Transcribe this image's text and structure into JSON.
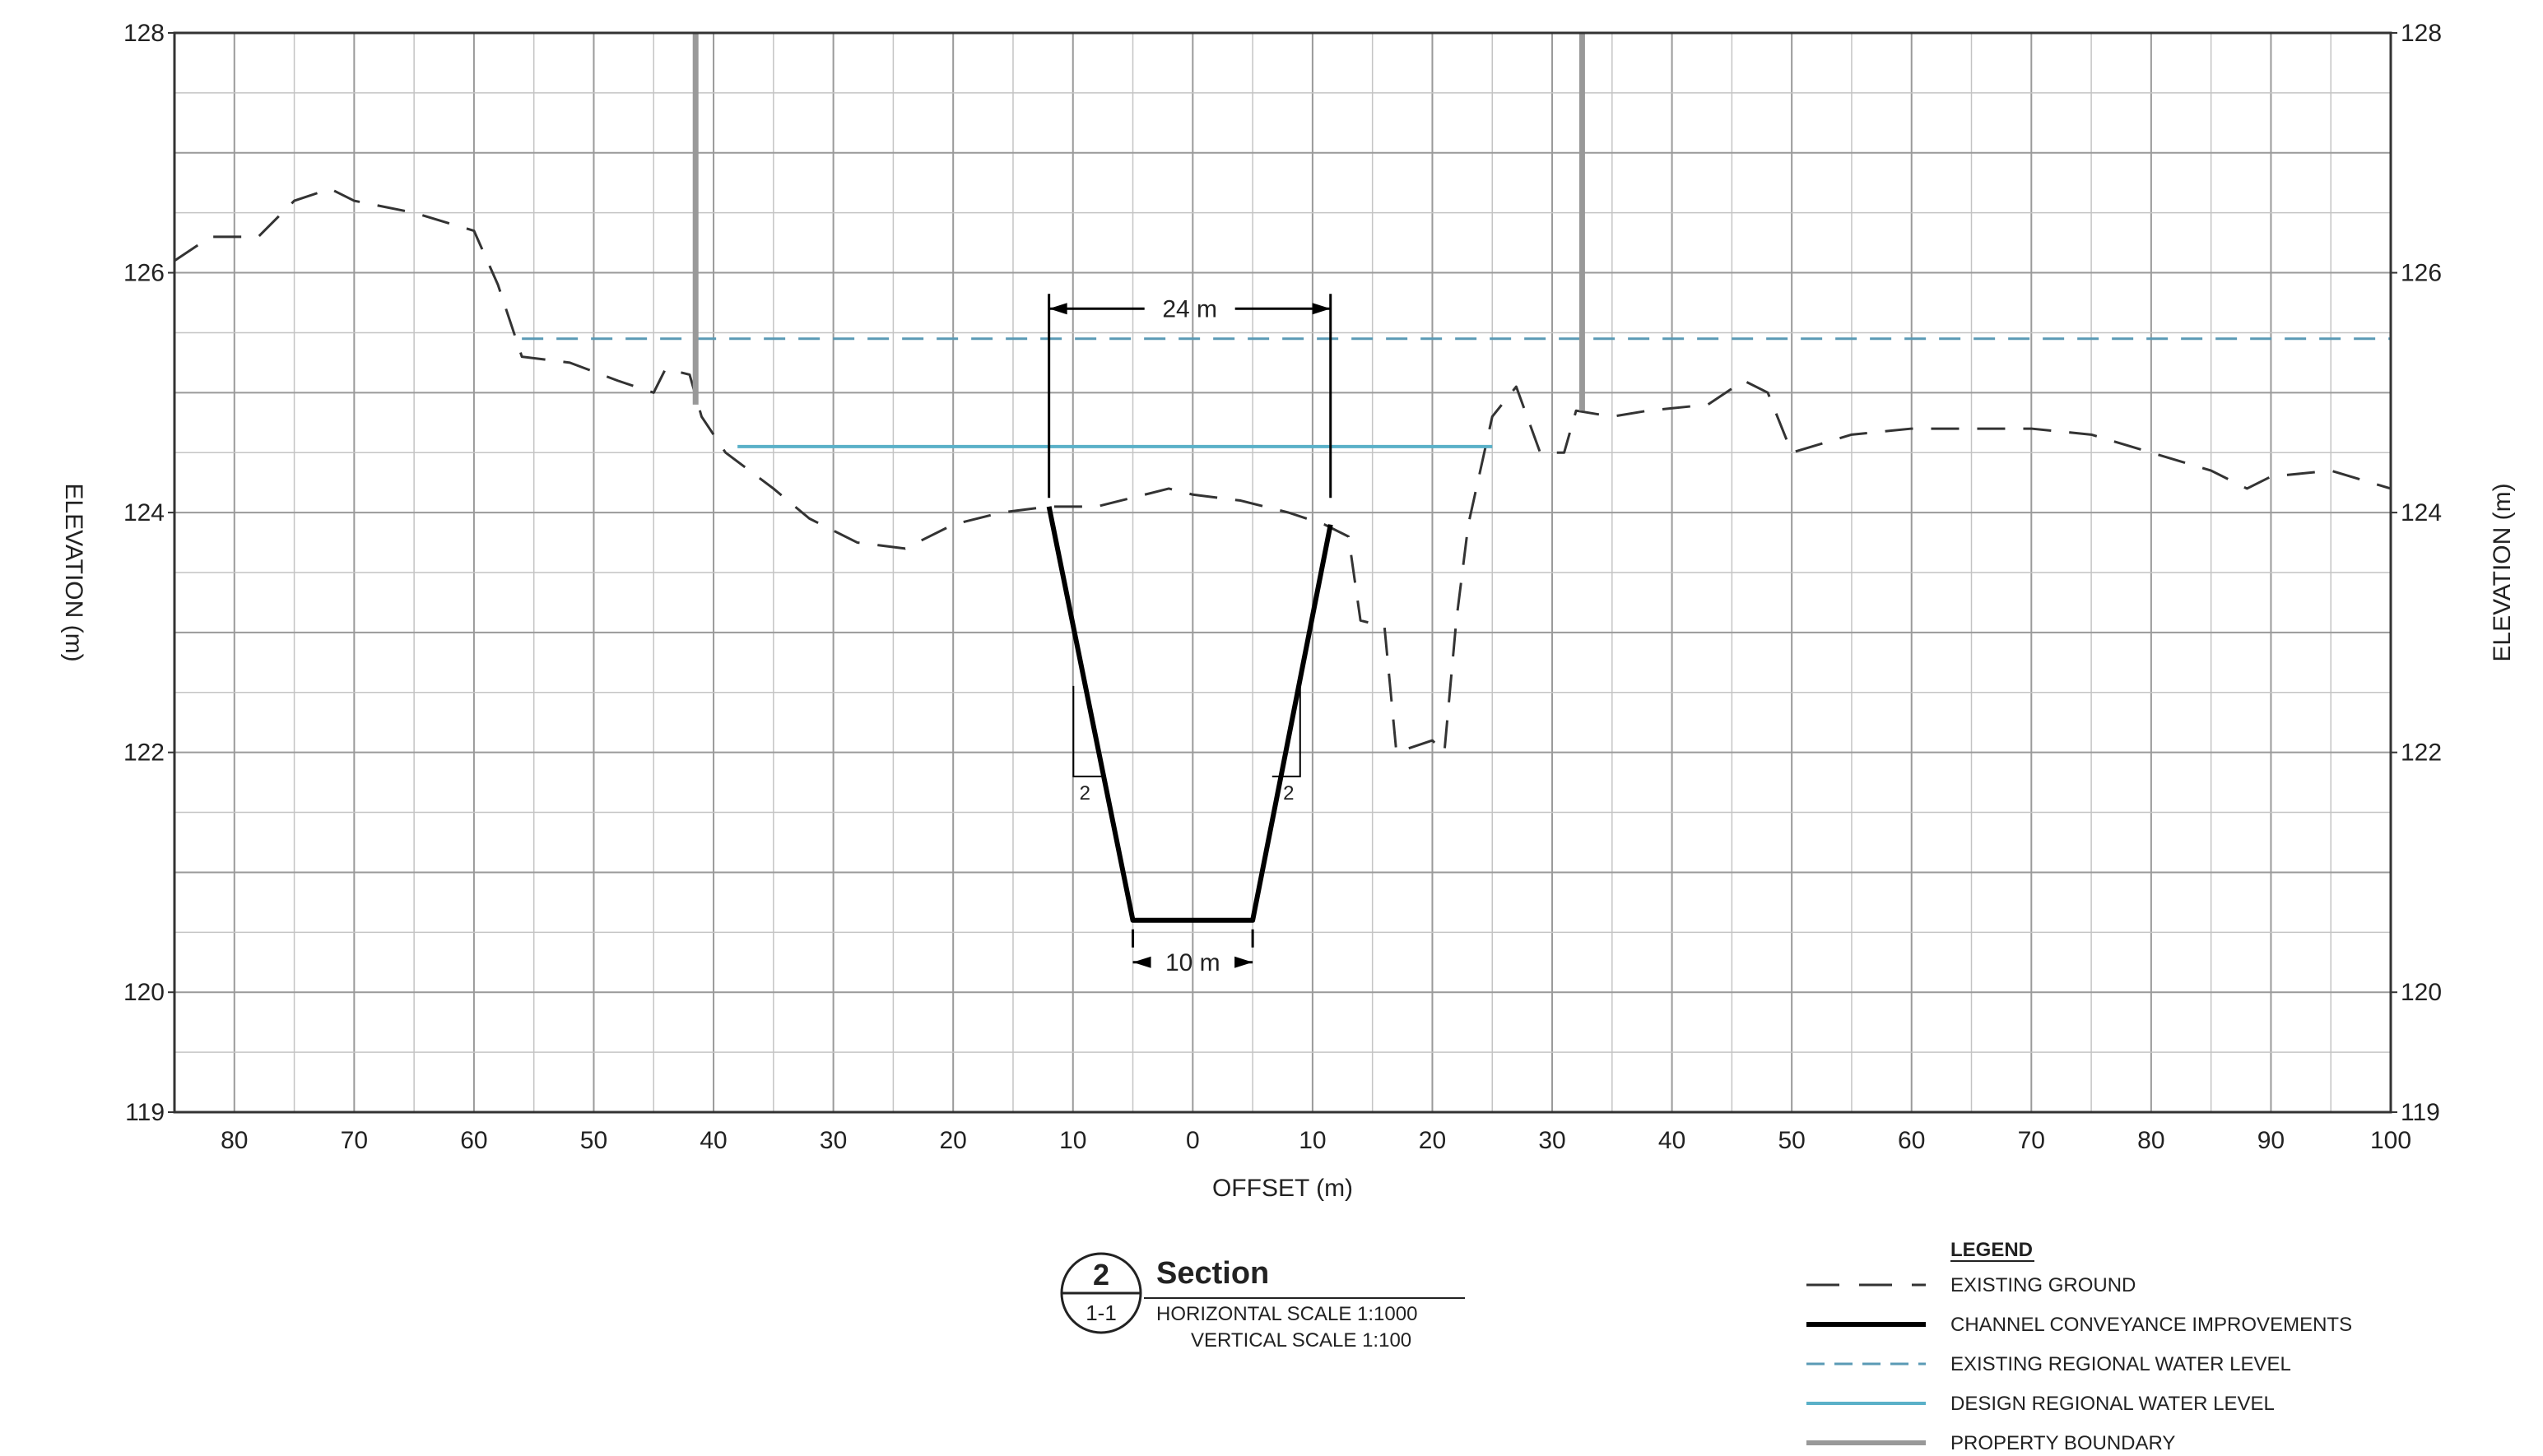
{
  "chart_data": {
    "type": "line",
    "xlabel": "OFFSET (m)",
    "ylabel_left": "ELEVATION (m)",
    "ylabel_right": "ELEVATION (m)",
    "ylim": [
      119,
      128
    ],
    "xlim": [
      -85,
      100
    ],
    "x_tick_positions": [
      -80,
      -70,
      -60,
      -50,
      -40,
      -30,
      -20,
      -10,
      0,
      10,
      20,
      30,
      40,
      50,
      60,
      70,
      80,
      90,
      100
    ],
    "x_tick_labels": [
      "80",
      "70",
      "60",
      "50",
      "40",
      "30",
      "20",
      "10",
      "0",
      "10",
      "20",
      "30",
      "40",
      "50",
      "60",
      "70",
      "80",
      "90",
      "100"
    ],
    "y_ticks": [
      119,
      120,
      122,
      124,
      126,
      128
    ],
    "y_tick_labels": [
      "119",
      "120",
      "122",
      "124",
      "126",
      "128"
    ],
    "grid": true,
    "series": [
      {
        "name": "EXISTING GROUND",
        "style": "long-dash",
        "color": "#333333",
        "points": [
          [
            -85,
            126.1
          ],
          [
            -82,
            126.3
          ],
          [
            -78,
            126.3
          ],
          [
            -75,
            126.6
          ],
          [
            -72,
            126.7
          ],
          [
            -70,
            126.6
          ],
          [
            -65,
            126.5
          ],
          [
            -60,
            126.35
          ],
          [
            -58,
            125.9
          ],
          [
            -56,
            125.3
          ],
          [
            -52,
            125.25
          ],
          [
            -48,
            125.1
          ],
          [
            -45,
            125.0
          ],
          [
            -44,
            125.2
          ],
          [
            -42,
            125.15
          ],
          [
            -41,
            124.8
          ],
          [
            -39,
            124.5
          ],
          [
            -35,
            124.2
          ],
          [
            -32,
            123.95
          ],
          [
            -28,
            123.75
          ],
          [
            -24,
            123.7
          ],
          [
            -20,
            123.9
          ],
          [
            -16,
            124.0
          ],
          [
            -12,
            124.05
          ],
          [
            -8,
            124.05
          ],
          [
            -4,
            124.15
          ],
          [
            -2,
            124.2
          ],
          [
            0,
            124.15
          ],
          [
            4,
            124.1
          ],
          [
            8,
            124.0
          ],
          [
            11,
            123.9
          ],
          [
            13,
            123.8
          ],
          [
            14,
            123.1
          ],
          [
            16,
            123.05
          ],
          [
            17,
            122.0
          ],
          [
            20,
            122.1
          ],
          [
            21,
            122.0
          ],
          [
            22,
            123.1
          ],
          [
            23,
            123.9
          ],
          [
            25,
            124.8
          ],
          [
            27,
            125.05
          ],
          [
            29,
            124.5
          ],
          [
            31,
            124.5
          ],
          [
            32,
            124.85
          ],
          [
            35,
            124.8
          ],
          [
            38,
            124.85
          ],
          [
            43,
            124.9
          ],
          [
            46,
            125.1
          ],
          [
            48,
            125.0
          ],
          [
            50,
            124.5
          ],
          [
            55,
            124.65
          ],
          [
            60,
            124.7
          ],
          [
            65,
            124.7
          ],
          [
            70,
            124.7
          ],
          [
            75,
            124.65
          ],
          [
            80,
            124.5
          ],
          [
            85,
            124.35
          ],
          [
            88,
            124.2
          ],
          [
            90,
            124.3
          ],
          [
            95,
            124.35
          ],
          [
            100,
            124.2
          ]
        ]
      },
      {
        "name": "CHANNEL CONVEYANCE IMPROVEMENTS",
        "style": "solid-heavy",
        "color": "#000000",
        "points": [
          [
            -12,
            124.05
          ],
          [
            -5,
            120.6
          ],
          [
            5,
            120.6
          ],
          [
            11.5,
            123.9
          ]
        ]
      },
      {
        "name": "EXISTING REGIONAL WATER LEVEL",
        "style": "dash",
        "color": "#5a9ab5",
        "points": [
          [
            -56,
            125.45
          ],
          [
            100,
            125.45
          ]
        ]
      },
      {
        "name": "DESIGN REGIONAL WATER LEVEL",
        "style": "solid",
        "color": "#5ab0c8",
        "points": [
          [
            -38,
            124.55
          ],
          [
            25,
            124.55
          ]
        ]
      },
      {
        "name": "PROPERTY BOUNDARY",
        "style": "solid-gray",
        "color": "#999999",
        "lines": [
          {
            "x": -41.5,
            "y_from": 124.9,
            "y_to": 128
          },
          {
            "x": 32.5,
            "y_from": 124.85,
            "y_to": 128
          }
        ]
      }
    ],
    "annotations": {
      "top_width": {
        "label": "24 m",
        "x_from": -12,
        "x_to": 11.5,
        "y": 125.7
      },
      "bottom_width": {
        "label": "10 m",
        "x_from": -5,
        "x_to": 5,
        "y": 120.25
      },
      "slope_left": {
        "label": "2",
        "x": -9,
        "y": 121.8
      },
      "slope_right": {
        "label": "2",
        "x": 8,
        "y": 121.8
      }
    },
    "section_block": {
      "number": "2",
      "reference": "1-1",
      "title": "Section",
      "scale_h": "HORIZONTAL SCALE 1:1000",
      "scale_v": "VERTICAL SCALE 1:100"
    },
    "legend": {
      "title": "LEGEND",
      "placement": "bottom-right",
      "items": [
        "EXISTING GROUND",
        "CHANNEL CONVEYANCE IMPROVEMENTS",
        "EXISTING REGIONAL WATER LEVEL",
        "DESIGN REGIONAL WATER LEVEL",
        "PROPERTY BOUNDARY"
      ]
    }
  }
}
